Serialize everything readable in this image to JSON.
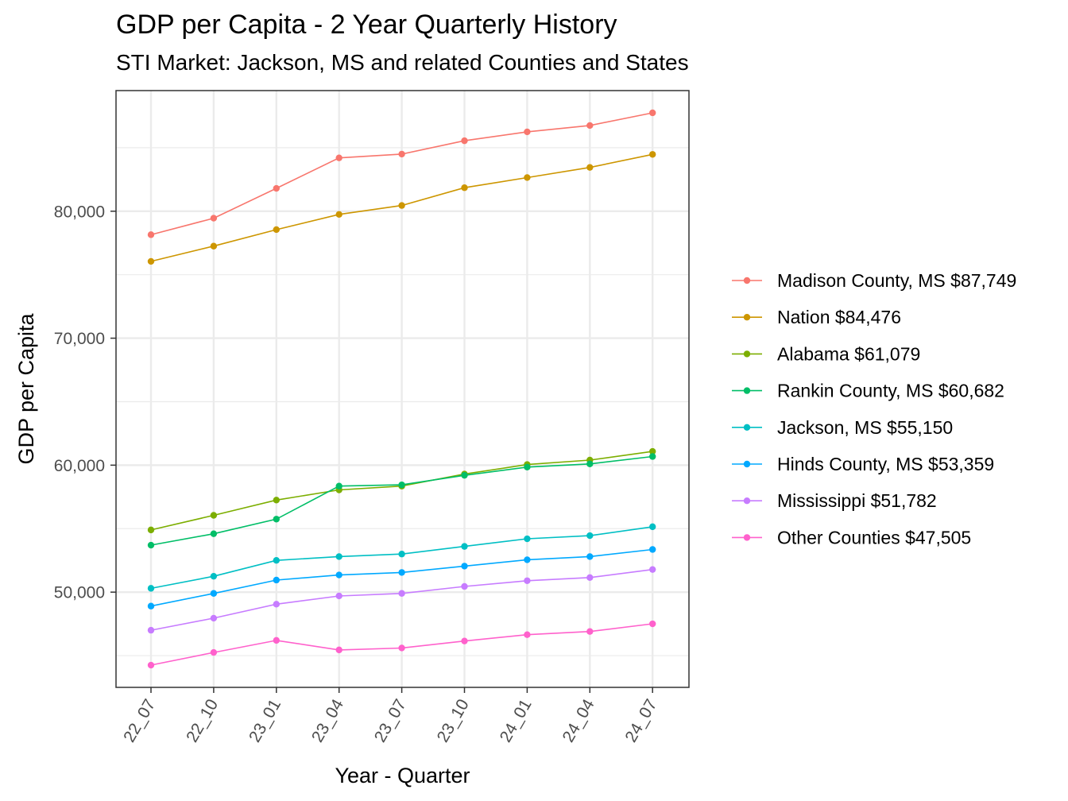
{
  "chart_data": {
    "type": "line",
    "title": "GDP per Capita - 2 Year Quarterly History",
    "subtitle": "STI Market: Jackson, MS and related Counties and States",
    "xlabel": "Year - Quarter",
    "ylabel": "GDP per Capita",
    "categories": [
      "22_07",
      "22_10",
      "23_01",
      "23_04",
      "23_07",
      "23_10",
      "24_01",
      "24_04",
      "24_07"
    ],
    "ylim": [
      42500,
      89500
    ],
    "yticks": [
      50000,
      60000,
      70000,
      80000
    ],
    "ytick_labels": [
      "50,000",
      "60,000",
      "70,000",
      "80,000"
    ],
    "grid": true,
    "legend_position": "right",
    "series": [
      {
        "name": "Madison County, MS $87,749",
        "color": "#F8766D",
        "values": [
          78150,
          79450,
          81800,
          84200,
          84500,
          85550,
          86250,
          86750,
          87749
        ]
      },
      {
        "name": "Nation $84,476",
        "color": "#CD9600",
        "values": [
          76050,
          77250,
          78550,
          79750,
          80450,
          81850,
          82650,
          83450,
          84476
        ]
      },
      {
        "name": "Alabama $61,079",
        "color": "#7CAE00",
        "values": [
          54900,
          56050,
          57250,
          58050,
          58350,
          59300,
          60050,
          60400,
          61079
        ]
      },
      {
        "name": "Rankin County, MS $60,682",
        "color": "#00BE67",
        "values": [
          53700,
          54600,
          55750,
          58350,
          58450,
          59200,
          59850,
          60100,
          60682
        ]
      },
      {
        "name": "Jackson, MS $55,150",
        "color": "#00BFC4",
        "values": [
          50300,
          51250,
          52500,
          52800,
          53000,
          53600,
          54200,
          54450,
          55150
        ]
      },
      {
        "name": "Hinds County, MS $53,359",
        "color": "#00A9FF",
        "values": [
          48900,
          49900,
          50950,
          51350,
          51550,
          52050,
          52550,
          52800,
          53359
        ]
      },
      {
        "name": "Mississippi $51,782",
        "color": "#C77CFF",
        "values": [
          47000,
          47950,
          49050,
          49700,
          49900,
          50450,
          50900,
          51150,
          51782
        ]
      },
      {
        "name": "Other Counties $47,505",
        "color": "#FF61CC",
        "values": [
          44250,
          45250,
          46200,
          45450,
          45600,
          46150,
          46650,
          46900,
          47505
        ]
      }
    ]
  }
}
